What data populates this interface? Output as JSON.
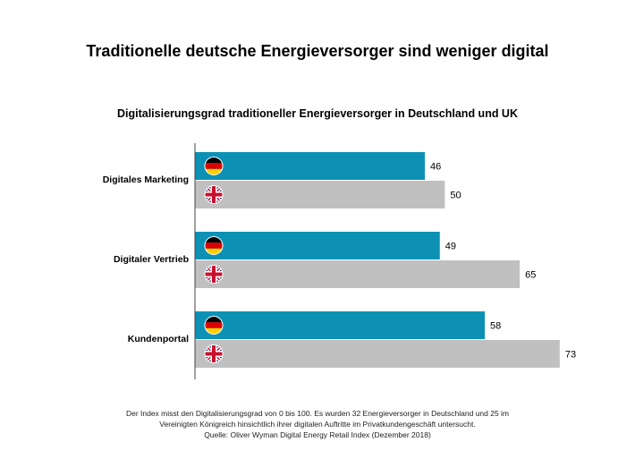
{
  "chart_data": {
    "type": "bar",
    "orientation": "horizontal",
    "title": "Traditionelle deutsche Energieversorger sind weniger digital",
    "subtitle": "Digitalisierungsgrad traditioneller Energieversorger in Deutschland und UK",
    "categories": [
      "Digitales Marketing",
      "Digitaler Vertrieb",
      "Kundenportal"
    ],
    "series": [
      {
        "flag": "germany-flag-icon",
        "color": "#0c91b5",
        "values": [
          46,
          49,
          58
        ]
      },
      {
        "flag": "uk-flag-icon",
        "color": "#c0c0c0",
        "values": [
          50,
          65,
          73
        ]
      }
    ],
    "xlim": [
      0,
      100
    ],
    "grid": false,
    "legend": "none"
  },
  "footnote": {
    "line1": "Der Index misst den Digitalisierungsgrad von 0 bis 100. Es wurden 32 Energieversorger in Deutschland und 25 im",
    "line2": "Vereinigten Königreich hinsichtlich ihrer digitalen Auftritte im Privatkundengeschäft untersucht.",
    "line3": "Quelle: Oliver Wyman Digital Energy Retail Index (Dezember 2018)"
  }
}
